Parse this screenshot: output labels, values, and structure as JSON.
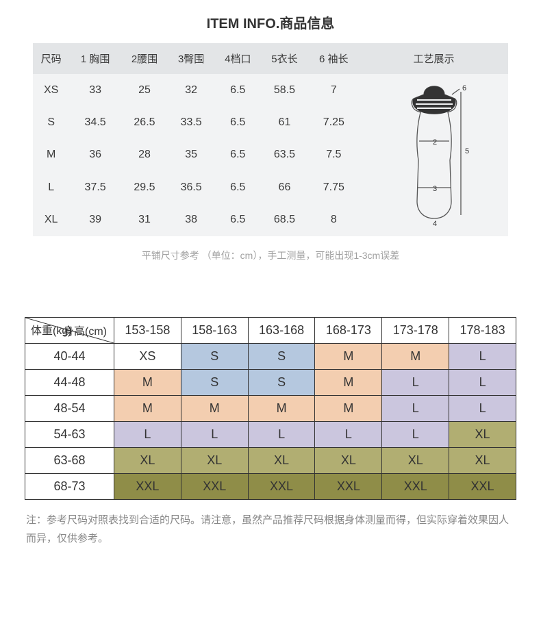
{
  "title": "ITEM INFO.商品信息",
  "size_table": {
    "headers": [
      "尺码",
      "1 胸围",
      "2腰围",
      "3臀围",
      "4档口",
      "5衣长",
      "6 袖长",
      "工艺展示"
    ],
    "rows": [
      [
        "XS",
        "33",
        "25",
        "32",
        "6.5",
        "58.5",
        "7"
      ],
      [
        "S",
        "34.5",
        "26.5",
        "33.5",
        "6.5",
        "61",
        "7.25"
      ],
      [
        "M",
        "36",
        "28",
        "35",
        "6.5",
        "63.5",
        "7.5"
      ],
      [
        "L",
        "37.5",
        "29.5",
        "36.5",
        "6.5",
        "66",
        "7.75"
      ],
      [
        "XL",
        "39",
        "31",
        "38",
        "6.5",
        "68.5",
        "8"
      ]
    ],
    "diagram_labels": {
      "n2": "2",
      "n3": "3",
      "n4": "4",
      "n5": "5",
      "n6": "6"
    }
  },
  "note1": "平铺尺寸参考 （单位：cm），手工测量，可能出现1-3cm误差",
  "guide_table": {
    "corner_top": "身高(cm)",
    "corner_bottom": "体重(kg)",
    "height_headers": [
      "153-158",
      "158-163",
      "163-168",
      "168-173",
      "173-178",
      "178-183"
    ],
    "weight_rows": [
      "40-44",
      "44-48",
      "48-54",
      "54-63",
      "63-68",
      "68-73"
    ],
    "cells": [
      [
        {
          "v": "XS",
          "c": "white"
        },
        {
          "v": "S",
          "c": "blue"
        },
        {
          "v": "S",
          "c": "blue"
        },
        {
          "v": "M",
          "c": "orange"
        },
        {
          "v": "M",
          "c": "orange"
        },
        {
          "v": "L",
          "c": "purple"
        }
      ],
      [
        {
          "v": "M",
          "c": "orange"
        },
        {
          "v": "S",
          "c": "blue"
        },
        {
          "v": "S",
          "c": "blue"
        },
        {
          "v": "M",
          "c": "orange"
        },
        {
          "v": "L",
          "c": "purple"
        },
        {
          "v": "L",
          "c": "purple"
        }
      ],
      [
        {
          "v": "M",
          "c": "orange"
        },
        {
          "v": "M",
          "c": "orange"
        },
        {
          "v": "M",
          "c": "orange"
        },
        {
          "v": "M",
          "c": "orange"
        },
        {
          "v": "L",
          "c": "purple"
        },
        {
          "v": "L",
          "c": "purple"
        }
      ],
      [
        {
          "v": "L",
          "c": "purple"
        },
        {
          "v": "L",
          "c": "purple"
        },
        {
          "v": "L",
          "c": "purple"
        },
        {
          "v": "L",
          "c": "purple"
        },
        {
          "v": "L",
          "c": "purple"
        },
        {
          "v": "XL",
          "c": "olive"
        }
      ],
      [
        {
          "v": "XL",
          "c": "olive"
        },
        {
          "v": "XL",
          "c": "olive"
        },
        {
          "v": "XL",
          "c": "olive"
        },
        {
          "v": "XL",
          "c": "olive"
        },
        {
          "v": "XL",
          "c": "olive"
        },
        {
          "v": "XL",
          "c": "olive"
        }
      ],
      [
        {
          "v": "XXL",
          "c": "dolive"
        },
        {
          "v": "XXL",
          "c": "dolive"
        },
        {
          "v": "XXL",
          "c": "dolive"
        },
        {
          "v": "XXL",
          "c": "dolive"
        },
        {
          "v": "XXL",
          "c": "dolive"
        },
        {
          "v": "XXL",
          "c": "dolive"
        }
      ]
    ]
  },
  "note2": "注：参考尺码对照表找到合适的尺码。请注意，虽然产品推荐尺码根据身体测量而得，但实际穿着效果因人而异，仅供参考。"
}
